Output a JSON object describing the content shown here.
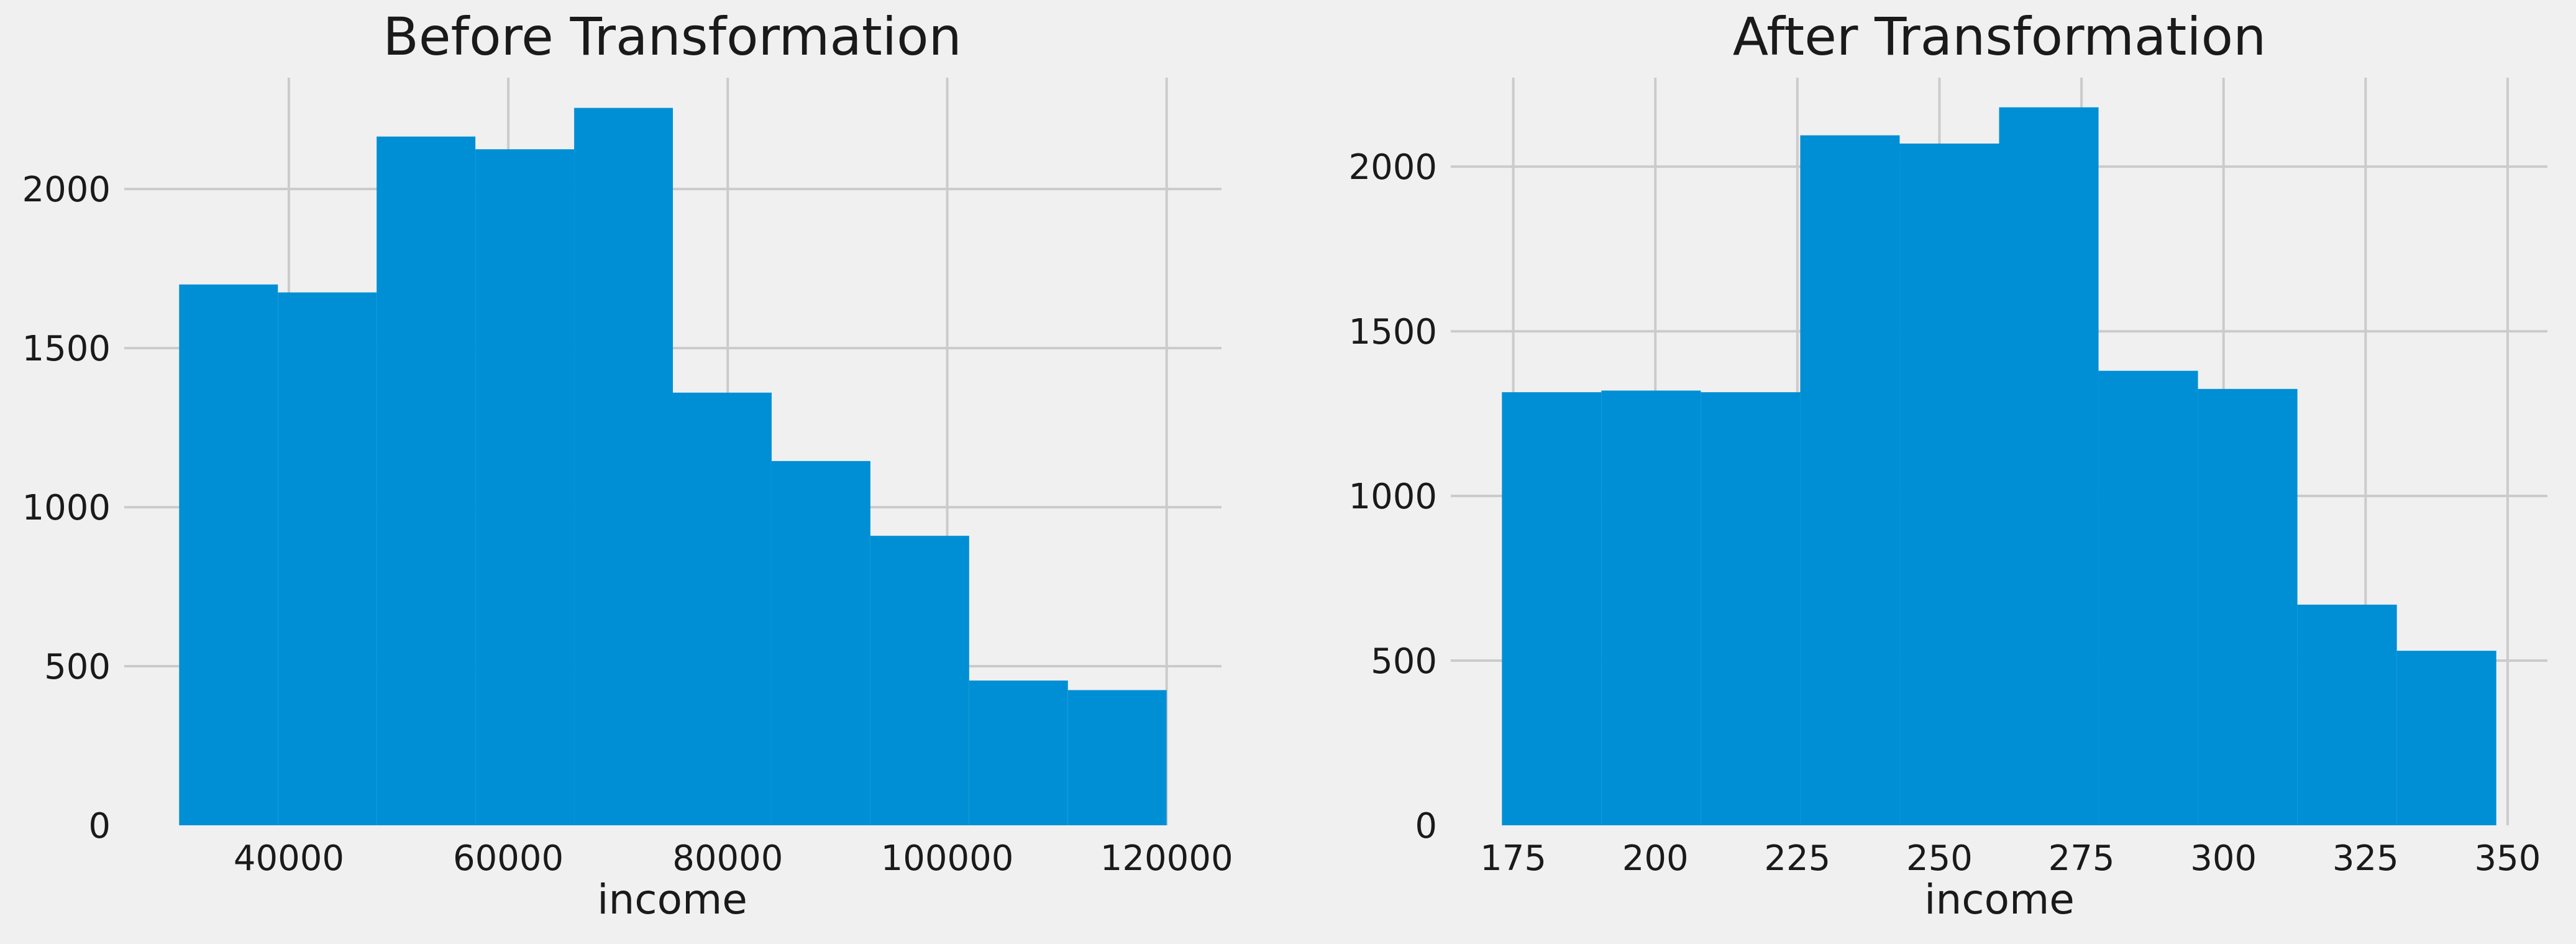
{
  "colors": {
    "background": "#f0f0f0",
    "bar": "#008fd5",
    "grid": "#cbcbcb",
    "text": "#1a1a1a"
  },
  "chart_data": [
    {
      "type": "bar",
      "histogram": true,
      "title": "Before Transformation",
      "xlabel": "income",
      "ylabel": "",
      "bin_edges": [
        30000,
        39000,
        48000,
        57000,
        66000,
        75000,
        84000,
        93000,
        102000,
        111000,
        120000
      ],
      "values": [
        1700,
        1675,
        2165,
        2125,
        2255,
        1360,
        1145,
        910,
        455,
        425
      ],
      "xlim": [
        25000,
        125000
      ],
      "ylim": [
        0,
        2350
      ],
      "xticks": [
        40000,
        60000,
        80000,
        100000,
        120000
      ],
      "yticks": [
        0,
        500,
        1000,
        1500,
        2000
      ],
      "grid": true
    },
    {
      "type": "bar",
      "histogram": true,
      "title": "After Transformation",
      "xlabel": "income",
      "ylabel": "",
      "bin_edges": [
        173,
        190.5,
        208,
        225.5,
        243,
        260.5,
        278,
        295.5,
        313,
        330.5,
        348
      ],
      "values": [
        1315,
        1320,
        1315,
        2095,
        2070,
        2180,
        1380,
        1325,
        670,
        530
      ],
      "xlim": [
        164,
        357
      ],
      "ylim": [
        0,
        2270
      ],
      "xticks": [
        175,
        200,
        225,
        250,
        275,
        300,
        325,
        350
      ],
      "yticks": [
        0,
        500,
        1000,
        1500,
        2000
      ],
      "grid": true
    }
  ]
}
